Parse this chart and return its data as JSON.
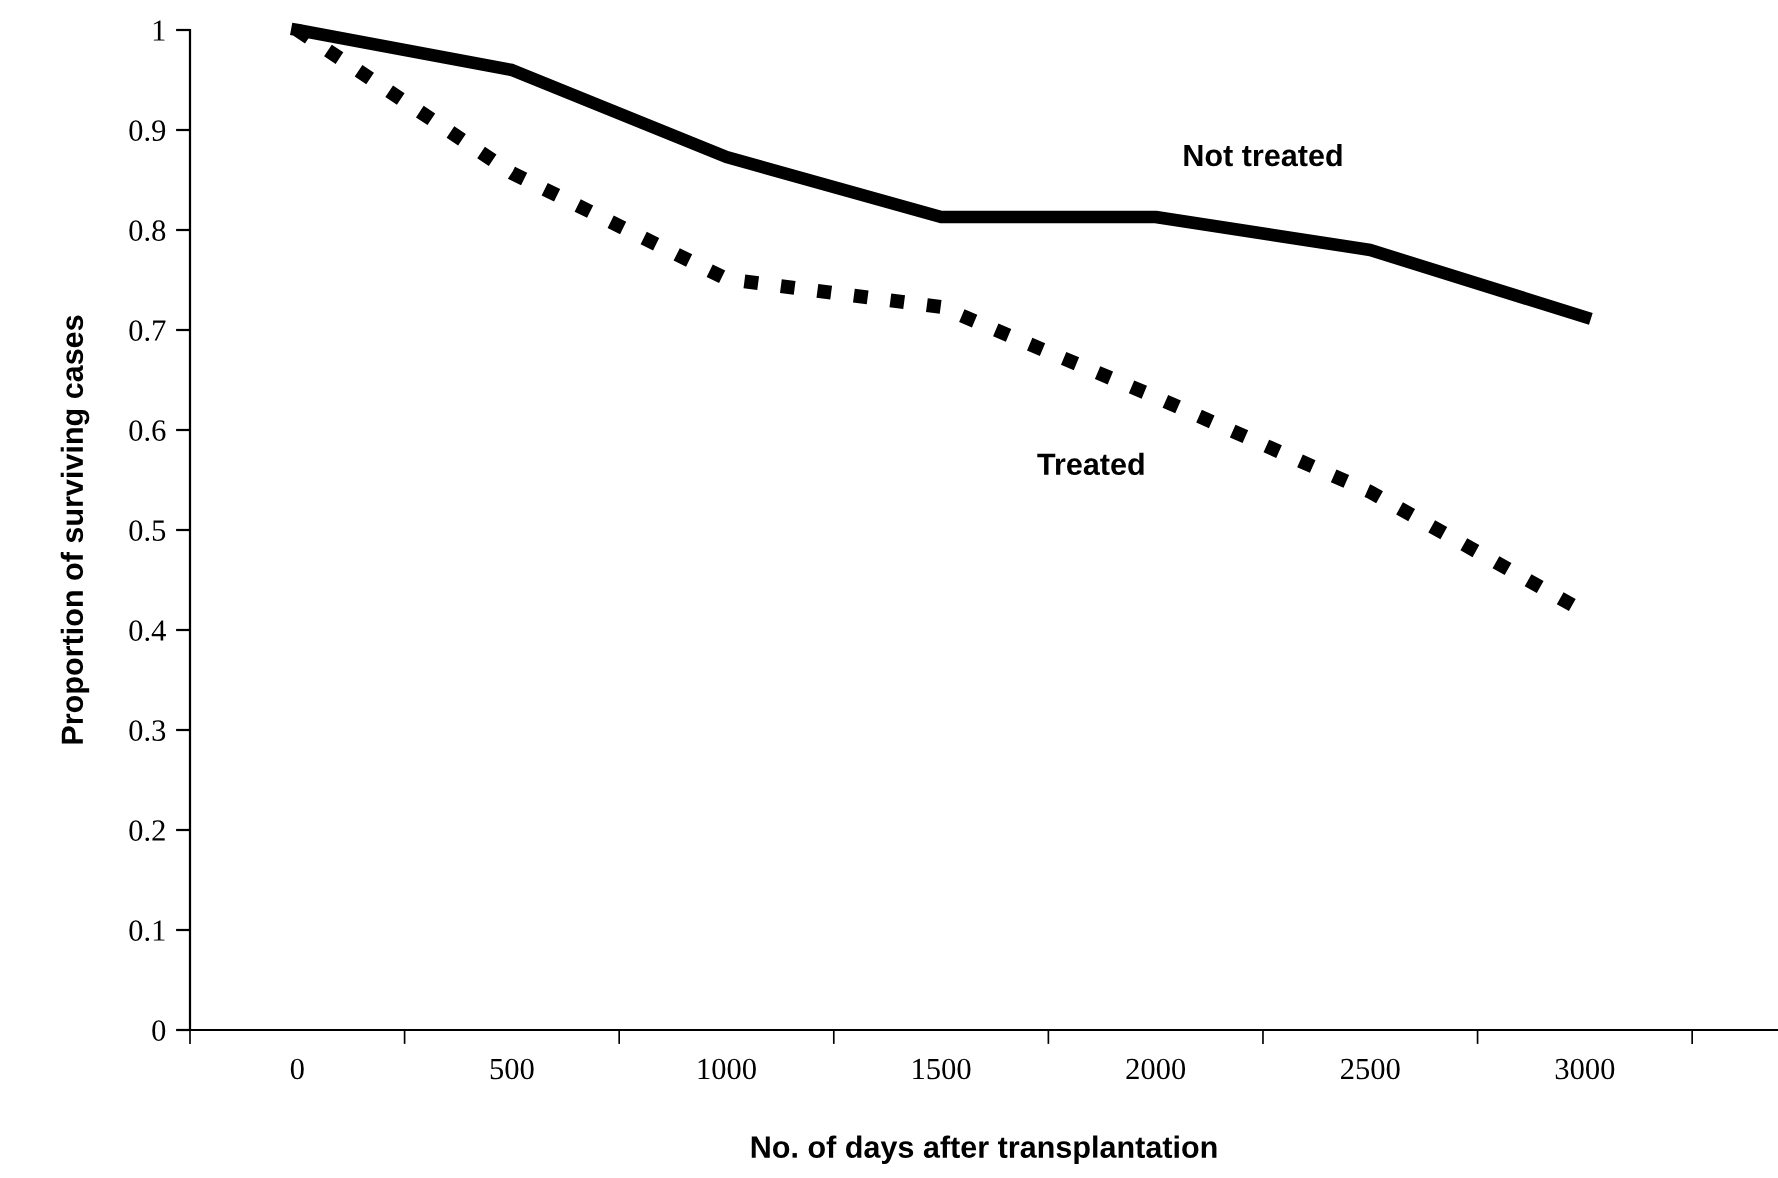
{
  "chart_data": {
    "type": "line",
    "xlabel": "No. of days after transplantation",
    "ylabel": "Proportion of surviving cases",
    "categories": [
      "0",
      "500",
      "1000",
      "1500",
      "2000",
      "2500",
      "3000"
    ],
    "series": [
      {
        "name": "Not treated",
        "color": "#000000",
        "line_style": "solid",
        "values": [
          1.0,
          0.96,
          0.873,
          0.813,
          0.813,
          0.78,
          0.713
        ]
      },
      {
        "name": "Treated",
        "color": "#000000",
        "line_style": "dotted",
        "values": [
          1.0,
          0.857,
          0.751,
          0.723,
          0.633,
          0.538,
          0.418
        ]
      }
    ],
    "ylim": [
      0,
      1
    ],
    "yticks": [
      0,
      0.1,
      0.2,
      0.3,
      0.4,
      0.5,
      0.6,
      0.7,
      0.8,
      0.9,
      1
    ],
    "grid": false,
    "legend": false,
    "marker": "none"
  }
}
